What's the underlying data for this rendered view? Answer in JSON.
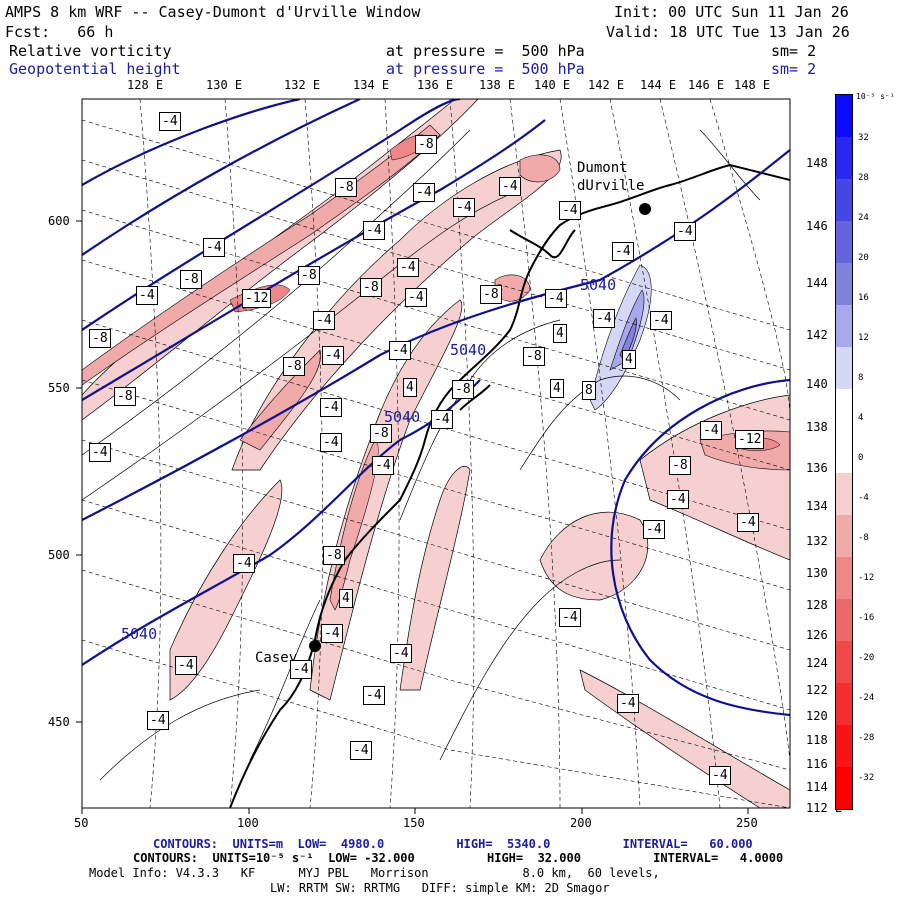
{
  "header": {
    "title": "AMPS 8 km WRF -- Casey-Dumont d'Urville Window",
    "init": "Init: 00 UTC Sun 11 Jan 26",
    "fcst": "Fcst:   66 h",
    "valid": "Valid: 18 UTC Tue 13 Jan 26",
    "field1_name": "Relative vorticity",
    "field1_pressure": "at pressure =  500 hPa",
    "field1_sm": "sm= 2",
    "field2_name": "Geopotential height",
    "field2_pressure": "at pressure =  500 hPa",
    "field2_sm": "sm= 2"
  },
  "axes": {
    "top_lon_labels": [
      "128 E",
      "130 E",
      "132 E",
      "134 E",
      "136 E",
      "138 E",
      "140 E",
      "142 E",
      "144 E",
      "146 E",
      "148 E"
    ],
    "right_lat_labels": [
      "148 E",
      "146 E",
      "144 E",
      "142 E",
      "140 E",
      "138 E",
      "136 E",
      "134 E",
      "132 E",
      "130 E",
      "128 E",
      "126 E",
      "124 E",
      "122 E",
      "120 E",
      "118 E",
      "116 E",
      "114 E",
      "112 E"
    ],
    "x_ticks": [
      "50",
      "100",
      "150",
      "200",
      "250"
    ],
    "y_ticks": [
      "600",
      "550",
      "500",
      "450"
    ]
  },
  "colorbar": {
    "unit_label": "10⁻⁵ s⁻¹",
    "levels": [
      "32",
      "28",
      "24",
      "20",
      "16",
      "12",
      "8",
      "4",
      "0",
      "-4",
      "-8",
      "-12",
      "-16",
      "-20",
      "-24",
      "-28",
      "-32"
    ],
    "colors": [
      "#0a0aff",
      "#2828f2",
      "#4646e6",
      "#6464dc",
      "#8282dc",
      "#a8a8ee",
      "#d6d6f6",
      "#ffffff",
      "#ffffff",
      "#f6d0d0",
      "#f0aaaa",
      "#ee8888",
      "#ec6a6a",
      "#ee4a4a",
      "#f22e2e",
      "#f81414",
      "#ff0000"
    ]
  },
  "map": {
    "stations": [
      {
        "name": "Dumont\ndUrville"
      },
      {
        "name": "Casey"
      }
    ],
    "height_labels": [
      "5040",
      "5040",
      "5040",
      "5040"
    ],
    "vort_labels": [
      "-4",
      "-8",
      "-12",
      "4",
      "8"
    ]
  },
  "footer": {
    "line1": "CONTOURS:  UNITS=m  LOW=  4980.0          HIGH=  5340.0          INTERVAL=   60.000",
    "line2": "CONTOURS:  UNITS=10⁻⁵ s⁻¹  LOW= -32.000          HIGH=  32.000          INTERVAL=   4.0000",
    "line3": "Model Info: V4.3.3   KF      MYJ PBL   Morrison             8.0 km,  60 levels,",
    "line4": "LW: RRTM SW: RRTMG   DIFF: simple KM: 2D Smagor"
  }
}
